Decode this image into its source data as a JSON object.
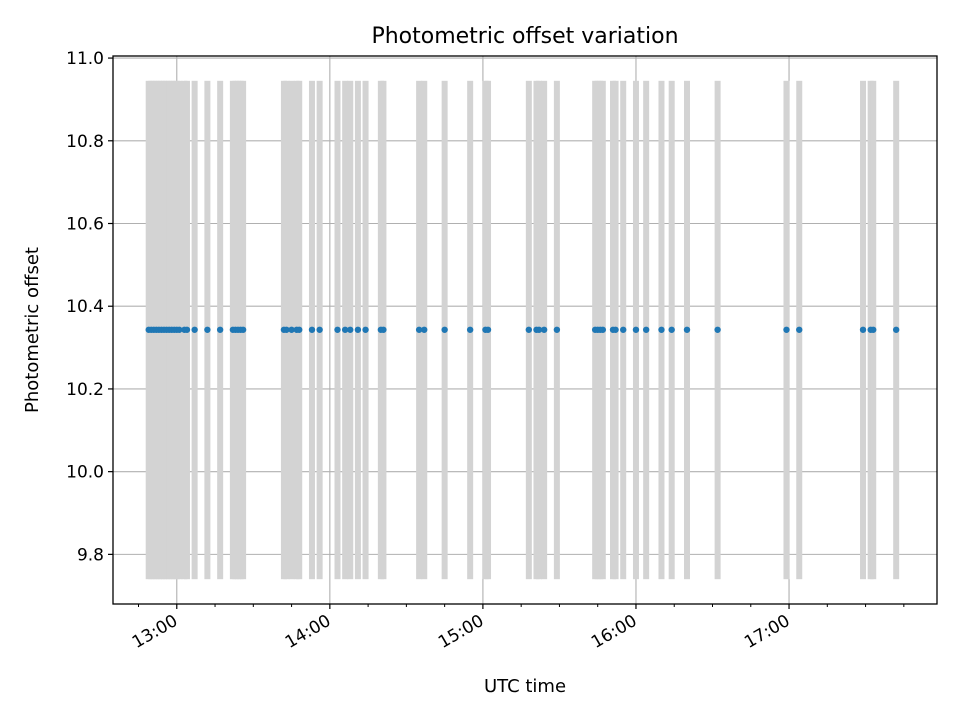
{
  "chart_data": {
    "type": "scatter",
    "title": "Photometric offset variation",
    "xlabel": "UTC time",
    "ylabel": "Photometric offset",
    "x_axis": "time",
    "xlim": [
      "12:35",
      "17:58"
    ],
    "ylim": [
      9.68,
      11.005
    ],
    "x_ticks": [
      "13:00",
      "14:00",
      "15:00",
      "16:00",
      "17:00"
    ],
    "y_ticks": [
      "9.8",
      "10.0",
      "10.2",
      "10.4",
      "10.6",
      "10.8",
      "11.0"
    ],
    "grid": true,
    "legend": "none",
    "colors": {
      "points": "#1f77b4",
      "bands": "#d3d3d3",
      "grid": "#b0b0b0"
    },
    "bands": {
      "y_range": [
        9.74,
        10.945
      ],
      "times": [
        "12:49",
        "12:50",
        "12:51",
        "12:52",
        "12:53",
        "12:54",
        "12:55",
        "12:56",
        "12:57",
        "12:58",
        "12:59",
        "13:00",
        "13:01",
        "13:03",
        "13:04",
        "13:07",
        "13:12",
        "13:17",
        "13:22",
        "13:23",
        "13:24",
        "13:25",
        "13:26",
        "13:42",
        "13:43",
        "13:45",
        "13:47",
        "13:48",
        "13:53",
        "13:56",
        "14:03",
        "14:06",
        "14:08",
        "14:11",
        "14:14",
        "14:20",
        "14:21",
        "14:35",
        "14:37",
        "14:45",
        "14:55",
        "15:01",
        "15:02",
        "15:18",
        "15:21",
        "15:22",
        "15:24",
        "15:29",
        "15:44",
        "15:45",
        "15:46",
        "15:47",
        "15:51",
        "15:52",
        "15:55",
        "16:00",
        "16:04",
        "16:10",
        "16:14",
        "16:20",
        "16:32",
        "16:59",
        "17:04",
        "17:29",
        "17:32",
        "17:33",
        "17:42"
      ]
    },
    "series": [
      {
        "y": 10.343,
        "x": [
          "12:49",
          "12:50",
          "12:51",
          "12:52",
          "12:53",
          "12:54",
          "12:55",
          "12:56",
          "12:57",
          "12:58",
          "12:59",
          "13:00",
          "13:01",
          "13:03",
          "13:04",
          "13:07",
          "13:12",
          "13:17",
          "13:22",
          "13:23",
          "13:24",
          "13:25",
          "13:26",
          "13:42",
          "13:43",
          "13:45",
          "13:47",
          "13:48",
          "13:53",
          "13:56",
          "14:03",
          "14:06",
          "14:08",
          "14:11",
          "14:14",
          "14:20",
          "14:21",
          "14:35",
          "14:37",
          "14:45",
          "14:55",
          "15:01",
          "15:02",
          "15:18",
          "15:21",
          "15:22",
          "15:24",
          "15:29",
          "15:44",
          "15:45",
          "15:46",
          "15:47",
          "15:51",
          "15:52",
          "15:55",
          "16:00",
          "16:04",
          "16:10",
          "16:14",
          "16:20",
          "16:32",
          "16:59",
          "17:04",
          "17:29",
          "17:32",
          "17:33",
          "17:42"
        ]
      }
    ]
  }
}
